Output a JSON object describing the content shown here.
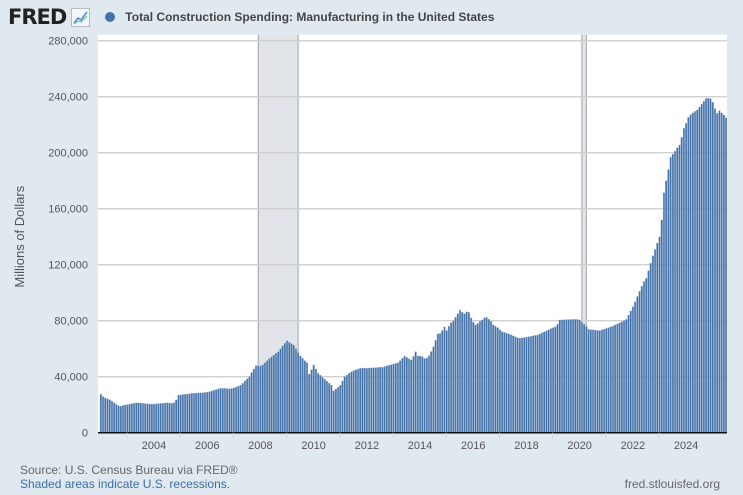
{
  "header": {
    "logo": "FRED",
    "series_title": "Total Construction Spending: Manufacturing in the United States",
    "series_color": "#4572a7"
  },
  "footer": {
    "source": "Source: U.S. Census Bureau via FRED®",
    "recession_note": "Shaded areas indicate U.S. recessions.",
    "site": "fred.stlouisfed.org"
  },
  "chart_data": {
    "type": "bar",
    "title": "Total Construction Spending: Manufacturing in the United States",
    "ylabel": "Millions of Dollars",
    "xlabel": "",
    "frequency": "monthly",
    "start": "2002-01",
    "ylim": [
      0,
      280000
    ],
    "yticks": [
      "0",
      "40,000",
      "80,000",
      "120,000",
      "160,000",
      "200,000",
      "240,000",
      "280,000"
    ],
    "xticks": [
      "2004",
      "2006",
      "2008",
      "2010",
      "2012",
      "2014",
      "2016",
      "2018",
      "2020",
      "2022",
      "2024"
    ],
    "grid": true,
    "color": "#4572a7",
    "recessions": [
      [
        "2007-12",
        "2009-06"
      ],
      [
        "2020-02",
        "2020-04"
      ]
    ],
    "recession_color": "#e1e5ea",
    "values": [
      27400,
      25800,
      24800,
      24200,
      23600,
      22600,
      21500,
      20200,
      19200,
      19000,
      19500,
      19800,
      20100,
      20500,
      20800,
      21000,
      21300,
      21400,
      21200,
      21000,
      20800,
      20700,
      20500,
      20500,
      20500,
      20700,
      20800,
      20900,
      21000,
      21200,
      21400,
      21200,
      21000,
      21500,
      23500,
      26900,
      27000,
      27300,
      27500,
      27600,
      27800,
      28100,
      28200,
      28300,
      28400,
      28500,
      28600,
      28800,
      29000,
      29300,
      29800,
      30300,
      30800,
      31300,
      31700,
      31600,
      31700,
      31500,
      31300,
      31600,
      32000,
      32600,
      33300,
      34000,
      35300,
      37000,
      38500,
      40000,
      43000,
      45500,
      48000,
      47800,
      47600,
      48500,
      50000,
      51500,
      53000,
      54300,
      55500,
      56700,
      57900,
      60000,
      62000,
      63900,
      65700,
      64600,
      63500,
      62600,
      60000,
      57300,
      54800,
      53200,
      51500,
      50000,
      41900,
      45000,
      48400,
      45500,
      42500,
      41000,
      39600,
      38200,
      36800,
      35400,
      34000,
      29800,
      31200,
      32600,
      34000,
      37000,
      40000,
      41200,
      42400,
      43600,
      44300,
      44900,
      45500,
      46000,
      46100,
      46200,
      46000,
      46200,
      46300,
      46400,
      46500,
      46600,
      46700,
      46800,
      47300,
      47700,
      48200,
      48600,
      49100,
      49500,
      50000,
      51500,
      53200,
      54800,
      53800,
      52800,
      52000,
      54500,
      57900,
      54800,
      54800,
      54300,
      53000,
      53300,
      55000,
      58000,
      61400,
      66000,
      70500,
      70900,
      73000,
      75700,
      73000,
      76000,
      78500,
      80000,
      82500,
      85000,
      87600,
      86000,
      85000,
      86400,
      86000,
      82000,
      79000,
      77000,
      78000,
      79500,
      80500,
      82000,
      82400,
      81000,
      79500,
      77000,
      76000,
      75000,
      73500,
      72200,
      71600,
      71000,
      70500,
      70000,
      69200,
      68500,
      67800,
      67400,
      67700,
      68000,
      68300,
      68600,
      68900,
      69200,
      69500,
      69800,
      70500,
      71300,
      72000,
      72800,
      73600,
      74400,
      75000,
      75700,
      77500,
      80500,
      80600,
      80700,
      80800,
      80800,
      80900,
      80900,
      80900,
      80900,
      80500,
      79000,
      77500,
      75800,
      73800,
      73600,
      73500,
      73300,
      73100,
      72900,
      73500,
      74000,
      74500,
      75000,
      75600,
      76200,
      77000,
      77800,
      78500,
      79300,
      80100,
      80900,
      84000,
      87000,
      90000,
      93600,
      97300,
      101000,
      104700,
      108000,
      110300,
      115700,
      121000,
      126400,
      130900,
      135500,
      140000,
      152000,
      171400,
      180000,
      188000,
      196700,
      199000,
      201000,
      203500,
      205500,
      211000,
      217400,
      221000,
      225200,
      227000,
      228500,
      229500,
      230500,
      232500,
      234600,
      236700,
      238800,
      238800,
      238600,
      236000,
      231500,
      228100,
      230000,
      228500,
      227000,
      225000
    ]
  }
}
